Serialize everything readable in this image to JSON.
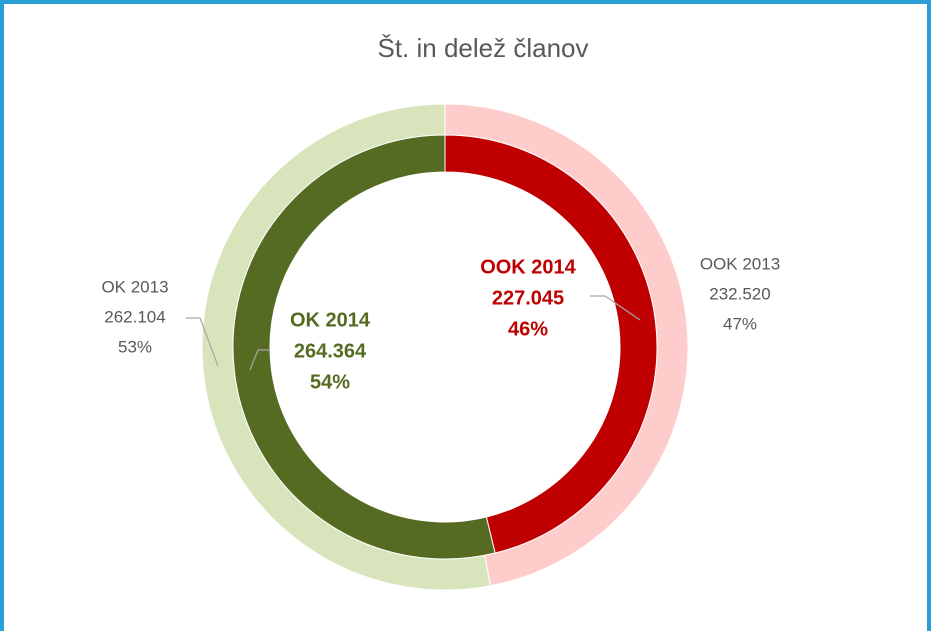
{
  "chart_data": {
    "type": "donut",
    "title": "Št. in delež članov",
    "rings": [
      {
        "categories": [
          "OOK 2013",
          "OK 2013"
        ],
        "values": [
          232520,
          262104
        ],
        "value_labels": [
          "232.520",
          "262.104"
        ],
        "percent_labels": [
          "47%",
          "53%"
        ],
        "colors": [
          "#ffcccc",
          "#d8e4bc"
        ],
        "label_colors": [
          "#595959",
          "#595959"
        ],
        "bold": false
      },
      {
        "categories": [
          "OOK 2014",
          "OK 2014"
        ],
        "values": [
          227045,
          264364
        ],
        "value_labels": [
          "227.045",
          "264.364"
        ],
        "percent_labels": [
          "46%",
          "54%"
        ],
        "colors": [
          "#c00000",
          "#556b22"
        ],
        "label_colors": [
          "#c00000",
          "#556b22"
        ],
        "bold": true
      }
    ]
  }
}
